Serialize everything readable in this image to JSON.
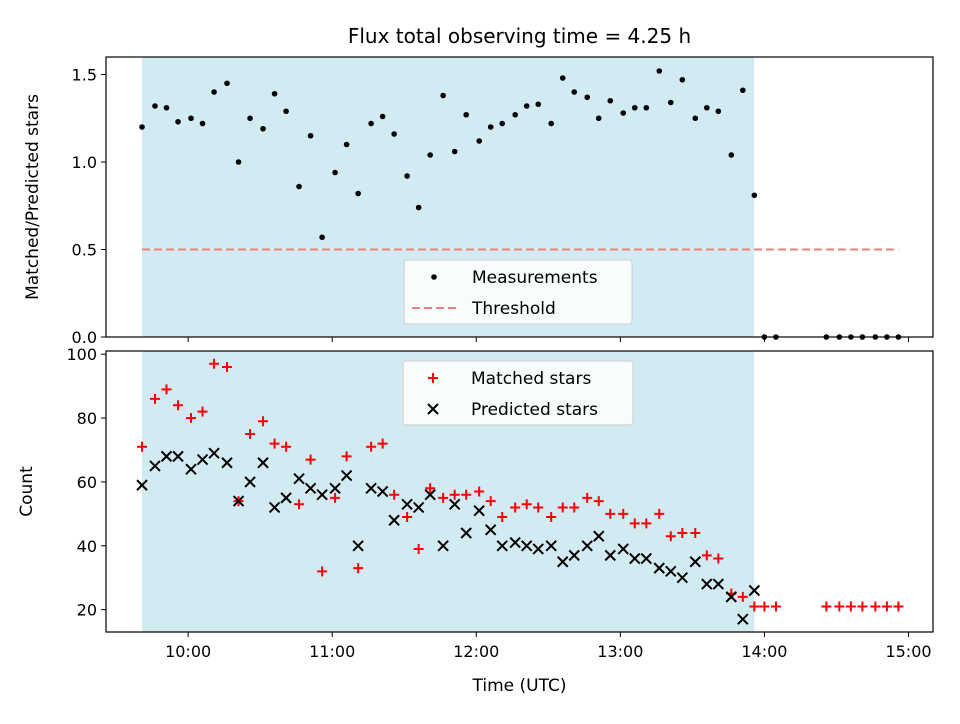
{
  "chart_data": [
    {
      "type": "scatter",
      "panel": "top",
      "title": "Flux total observing time = 4.25 h",
      "xlabel": "",
      "ylabel": "Matched/Predicted stars",
      "xlim": [
        9.43,
        15.17
      ],
      "ylim": [
        0.0,
        1.6
      ],
      "yticks": [
        0.0,
        0.5,
        1.0,
        1.5
      ],
      "ytick_labels": [
        "0.0",
        "0.5",
        "1.0",
        "1.5"
      ],
      "shaded_span": [
        9.68,
        13.93
      ],
      "shade_color": "#add8e6",
      "legend_position": "lower-center",
      "series": [
        {
          "name": "Measurements",
          "color": "#000000",
          "marker": "dot",
          "x": [
            9.68,
            9.77,
            9.85,
            9.93,
            10.02,
            10.1,
            10.18,
            10.27,
            10.35,
            10.43,
            10.52,
            10.6,
            10.68,
            10.77,
            10.85,
            10.93,
            11.02,
            11.1,
            11.18,
            11.27,
            11.35,
            11.43,
            11.52,
            11.6,
            11.68,
            11.77,
            11.85,
            11.93,
            12.02,
            12.1,
            12.18,
            12.27,
            12.35,
            12.43,
            12.52,
            12.6,
            12.68,
            12.77,
            12.85,
            12.93,
            13.02,
            13.1,
            13.18,
            13.27,
            13.35,
            13.43,
            13.52,
            13.6,
            13.68,
            13.77,
            13.85,
            13.93,
            14.0,
            14.08,
            14.43,
            14.52,
            14.6,
            14.68,
            14.77,
            14.85,
            14.93
          ],
          "y": [
            1.2,
            1.32,
            1.31,
            1.23,
            1.25,
            1.22,
            1.4,
            1.45,
            1.0,
            1.25,
            1.19,
            1.39,
            1.29,
            0.86,
            1.15,
            0.57,
            0.94,
            1.1,
            0.82,
            1.22,
            1.26,
            1.16,
            0.92,
            0.74,
            1.04,
            1.38,
            1.06,
            1.27,
            1.12,
            1.2,
            1.22,
            1.27,
            1.32,
            1.33,
            1.22,
            1.48,
            1.4,
            1.37,
            1.25,
            1.35,
            1.28,
            1.31,
            1.31,
            1.52,
            1.34,
            1.47,
            1.25,
            1.31,
            1.29,
            1.04,
            1.41,
            0.81,
            0.0,
            0.0,
            0.0,
            0.0,
            0.0,
            0.0,
            0.0,
            0.0,
            0.0
          ]
        },
        {
          "name": "Threshold",
          "color": "#f08080",
          "style": "dashed",
          "x": [
            9.68,
            14.93
          ],
          "y": [
            0.5,
            0.5
          ]
        }
      ]
    },
    {
      "type": "scatter",
      "panel": "bottom",
      "xlabel": "Time (UTC)",
      "ylabel": "Count",
      "xlim": [
        9.43,
        15.17
      ],
      "ylim": [
        13,
        101
      ],
      "yticks": [
        20,
        40,
        60,
        80,
        100
      ],
      "ytick_labels": [
        "20",
        "40",
        "60",
        "80",
        "100"
      ],
      "xticks": [
        10,
        11,
        12,
        13,
        14,
        15
      ],
      "xtick_labels": [
        "10:00",
        "11:00",
        "12:00",
        "13:00",
        "14:00",
        "15:00"
      ],
      "shaded_span": [
        9.68,
        13.93
      ],
      "shade_color": "#add8e6",
      "legend_position": "upper-center",
      "series": [
        {
          "name": "Matched stars",
          "color": "#ff0000",
          "marker": "plus",
          "x": [
            9.68,
            9.77,
            9.85,
            9.93,
            10.02,
            10.1,
            10.18,
            10.27,
            10.35,
            10.43,
            10.52,
            10.6,
            10.68,
            10.77,
            10.85,
            10.93,
            11.02,
            11.1,
            11.18,
            11.27,
            11.35,
            11.43,
            11.52,
            11.6,
            11.68,
            11.77,
            11.85,
            11.93,
            12.02,
            12.1,
            12.18,
            12.27,
            12.35,
            12.43,
            12.52,
            12.6,
            12.68,
            12.77,
            12.85,
            12.93,
            13.02,
            13.1,
            13.18,
            13.27,
            13.35,
            13.43,
            13.52,
            13.6,
            13.68,
            13.77,
            13.85,
            13.93,
            14.0,
            14.08,
            14.43,
            14.52,
            14.6,
            14.68,
            14.77,
            14.85,
            14.93
          ],
          "y": [
            71,
            86,
            89,
            84,
            80,
            82,
            97,
            96,
            54,
            75,
            79,
            72,
            71,
            53,
            67,
            32,
            55,
            68,
            33,
            71,
            72,
            56,
            49,
            39,
            58,
            55,
            56,
            56,
            57,
            54,
            49,
            52,
            53,
            52,
            49,
            52,
            52,
            55,
            54,
            50,
            50,
            47,
            47,
            50,
            43,
            44,
            44,
            37,
            36,
            25,
            24,
            21,
            21,
            21,
            21,
            21,
            21,
            21,
            21,
            21,
            21
          ]
        },
        {
          "name": "Predicted stars",
          "color": "#000000",
          "marker": "x",
          "x": [
            9.68,
            9.77,
            9.85,
            9.93,
            10.02,
            10.1,
            10.18,
            10.27,
            10.35,
            10.43,
            10.52,
            10.6,
            10.68,
            10.77,
            10.85,
            10.93,
            11.02,
            11.1,
            11.18,
            11.27,
            11.35,
            11.43,
            11.52,
            11.6,
            11.68,
            11.77,
            11.85,
            11.93,
            12.02,
            12.1,
            12.18,
            12.27,
            12.35,
            12.43,
            12.52,
            12.6,
            12.68,
            12.77,
            12.85,
            12.93,
            13.02,
            13.1,
            13.18,
            13.27,
            13.35,
            13.43,
            13.52,
            13.6,
            13.68,
            13.77,
            13.85,
            13.93
          ],
          "y": [
            59,
            65,
            68,
            68,
            64,
            67,
            69,
            66,
            54,
            60,
            66,
            52,
            55,
            61,
            58,
            56,
            58,
            62,
            40,
            58,
            57,
            48,
            53,
            52,
            56,
            40,
            53,
            44,
            51,
            45,
            40,
            41,
            40,
            39,
            40,
            35,
            37,
            40,
            43,
            37,
            39,
            36,
            36,
            33,
            32,
            30,
            35,
            28,
            28,
            24,
            17,
            26
          ]
        }
      ]
    }
  ]
}
